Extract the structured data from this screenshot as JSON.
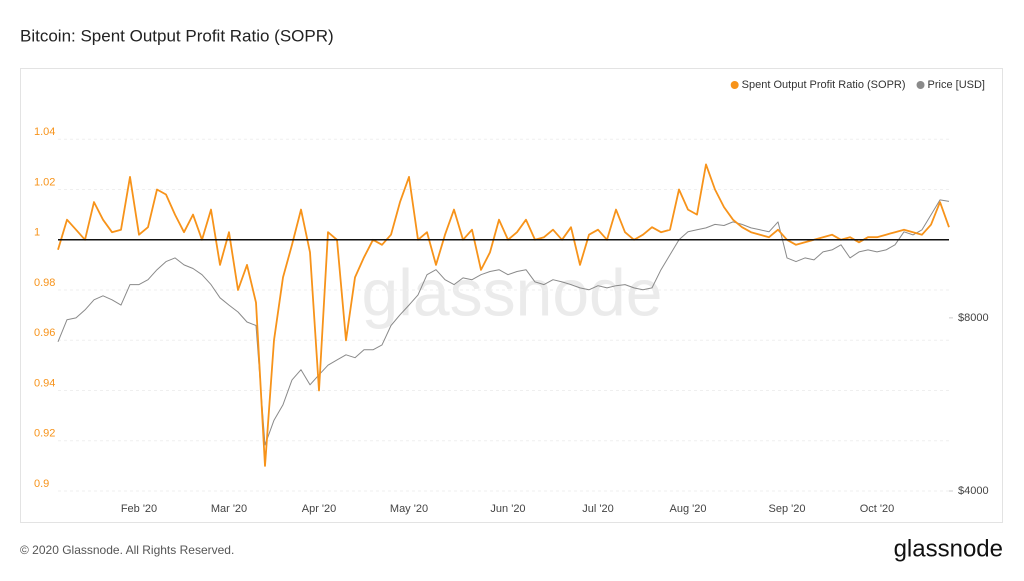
{
  "chart_data": {
    "type": "line",
    "title": "Bitcoin: Spent Output Profit Ratio (SOPR)",
    "watermark": "glassnode",
    "footer": "© 2020 Glassnode. All Rights Reserved.",
    "logo": "glassnode",
    "categories": [
      null,
      null,
      null,
      null,
      null,
      null,
      null,
      null,
      null,
      "Feb '20",
      null,
      null,
      null,
      null,
      null,
      null,
      null,
      null,
      null,
      "Mar '20",
      null,
      null,
      null,
      null,
      null,
      null,
      null,
      null,
      null,
      "Apr '20",
      null,
      null,
      null,
      null,
      null,
      null,
      null,
      null,
      null,
      "May '20",
      null,
      null,
      null,
      null,
      null,
      null,
      null,
      null,
      null,
      null,
      "Jun '20",
      null,
      null,
      null,
      null,
      null,
      null,
      null,
      null,
      null,
      "Jul '20",
      null,
      null,
      null,
      null,
      null,
      null,
      null,
      null,
      null,
      "Aug '20",
      null,
      null,
      null,
      null,
      null,
      null,
      null,
      null,
      null,
      null,
      "Sep '20",
      null,
      null,
      null,
      null,
      null,
      null,
      null,
      null,
      null,
      "Oct '20",
      null,
      null,
      null,
      null,
      null,
      null,
      null,
      null
    ],
    "series": [
      {
        "name": "Spent Output Profit Ratio (SOPR)",
        "color": "#f7931a",
        "axis": "y",
        "values": [
          0.996,
          1.008,
          1.004,
          1.0,
          1.015,
          1.008,
          1.003,
          1.004,
          1.025,
          1.002,
          1.005,
          1.02,
          1.018,
          1.01,
          1.003,
          1.01,
          1.0,
          1.012,
          0.99,
          1.003,
          0.98,
          0.99,
          0.975,
          0.91,
          0.96,
          0.985,
          0.998,
          1.012,
          0.995,
          0.94,
          1.003,
          1.0,
          0.96,
          0.985,
          0.993,
          1.0,
          0.998,
          1.002,
          1.015,
          1.025,
          1.0,
          1.003,
          0.99,
          1.002,
          1.012,
          1.0,
          1.004,
          0.988,
          0.995,
          1.008,
          1.0,
          1.003,
          1.008,
          1.0,
          1.001,
          1.004,
          1.0,
          1.005,
          0.99,
          1.002,
          1.004,
          1.0,
          1.012,
          1.003,
          1.0,
          1.002,
          1.005,
          1.003,
          1.004,
          1.02,
          1.012,
          1.01,
          1.03,
          1.02,
          1.013,
          1.008,
          1.005,
          1.003,
          1.002,
          1.001,
          1.004,
          1.0,
          0.998,
          0.999,
          1.0,
          1.001,
          1.002,
          1.0,
          1.001,
          0.999,
          1.001,
          1.001,
          1.002,
          1.003,
          1.004,
          1.003,
          1.002,
          1.006,
          1.015,
          1.005
        ]
      },
      {
        "name": "Price [USD]",
        "color": "#8a8a8a",
        "axis": "y2",
        "values": [
          7270,
          7940,
          8000,
          8260,
          8600,
          8740,
          8600,
          8420,
          9140,
          9140,
          9320,
          9700,
          10020,
          10170,
          9890,
          9750,
          9510,
          9140,
          8670,
          8420,
          8190,
          7870,
          7760,
          4810,
          5310,
          5650,
          6240,
          6500,
          6120,
          6370,
          6620,
          6760,
          6900,
          6820,
          7040,
          7040,
          7180,
          7760,
          8100,
          8420,
          8770,
          9510,
          9700,
          9320,
          9140,
          9390,
          9320,
          9510,
          9630,
          9700,
          9510,
          9630,
          9700,
          9240,
          9140,
          9320,
          9240,
          9140,
          9020,
          8950,
          9100,
          9020,
          9100,
          9140,
          9020,
          8950,
          9020,
          9700,
          10300,
          10940,
          11290,
          11380,
          11470,
          11630,
          11580,
          11750,
          11630,
          11470,
          11380,
          11290,
          11750,
          10170,
          10020,
          10170,
          10090,
          10420,
          10500,
          10720,
          10170,
          10420,
          10500,
          10420,
          10500,
          10720,
          11290,
          11150,
          11380,
          12080,
          12830,
          12750
        ]
      }
    ],
    "ylim": [
      0.9,
      1.06
    ],
    "yticks": [
      0.9,
      0.92,
      0.94,
      0.96,
      0.98,
      1,
      1.02,
      1.04
    ],
    "y2lim": [
      4000,
      20000
    ],
    "y2ticks": [
      {
        "value": 4000,
        "label": "$4000"
      },
      {
        "value": 8000,
        "label": "$8000"
      }
    ],
    "y2log": true,
    "baseline": 1,
    "grid": true,
    "legend": "top-right"
  }
}
